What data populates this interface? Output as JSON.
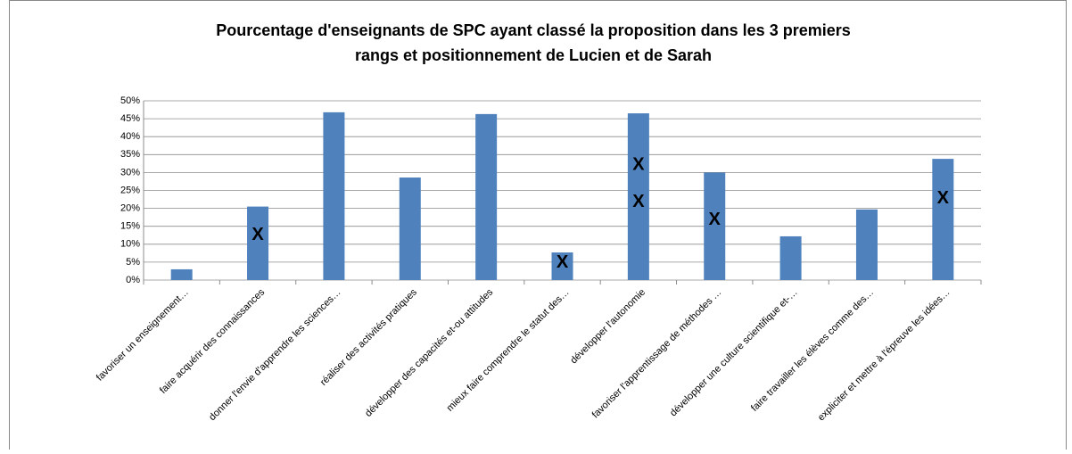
{
  "chart_data": {
    "type": "bar",
    "title": [
      "Pourcentage d'enseignants de SPC ayant classé la proposition dans les 3 premiers",
      "rangs et positionnement de Lucien et de Sarah"
    ],
    "categories": [
      "favoriser un enseignement…",
      "faire acquérir des connaissances",
      "donner l'envie d'apprendre les sciences…",
      "réaliser des activités pratiques",
      "développer des capacités et-ou attitudes",
      "mieux faire comprendre le statut des…",
      "développer l'autonomie",
      "favoriser l'apprentissage de méthodes …",
      "développer une culture scientifique et-…",
      "faire travailler les élèves comme des…",
      "expliciter et mettre à l'épreuve les idées…"
    ],
    "values": [
      3,
      20.5,
      46.8,
      28.6,
      46.3,
      7.7,
      46.5,
      30,
      12.2,
      19.7,
      33.8
    ],
    "color": "#4f81bd",
    "markers": [
      {
        "marker": "X",
        "color": "#ffffff",
        "values": [
          null,
          12.7,
          null,
          null,
          null,
          null,
          32.3,
          null,
          null,
          null,
          23
        ]
      },
      {
        "marker": "X",
        "color": "#000000",
        "values": [
          null,
          null,
          null,
          null,
          null,
          5,
          21.9,
          17,
          null,
          null,
          null
        ]
      }
    ],
    "ylim": [
      0,
      50
    ],
    "yticks": [
      {
        "value": 0,
        "label": "0%"
      },
      {
        "value": 5,
        "label": "5%"
      },
      {
        "value": 10,
        "label": "10%"
      },
      {
        "value": 15,
        "label": "15%"
      },
      {
        "value": 20,
        "label": "20%"
      },
      {
        "value": 25,
        "label": "25%"
      },
      {
        "value": 30,
        "label": "30%"
      },
      {
        "value": 35,
        "label": "35%"
      },
      {
        "value": 40,
        "label": "40%"
      },
      {
        "value": 45,
        "label": "45%"
      },
      {
        "value": 50,
        "label": "50%"
      }
    ],
    "grid": true
  }
}
